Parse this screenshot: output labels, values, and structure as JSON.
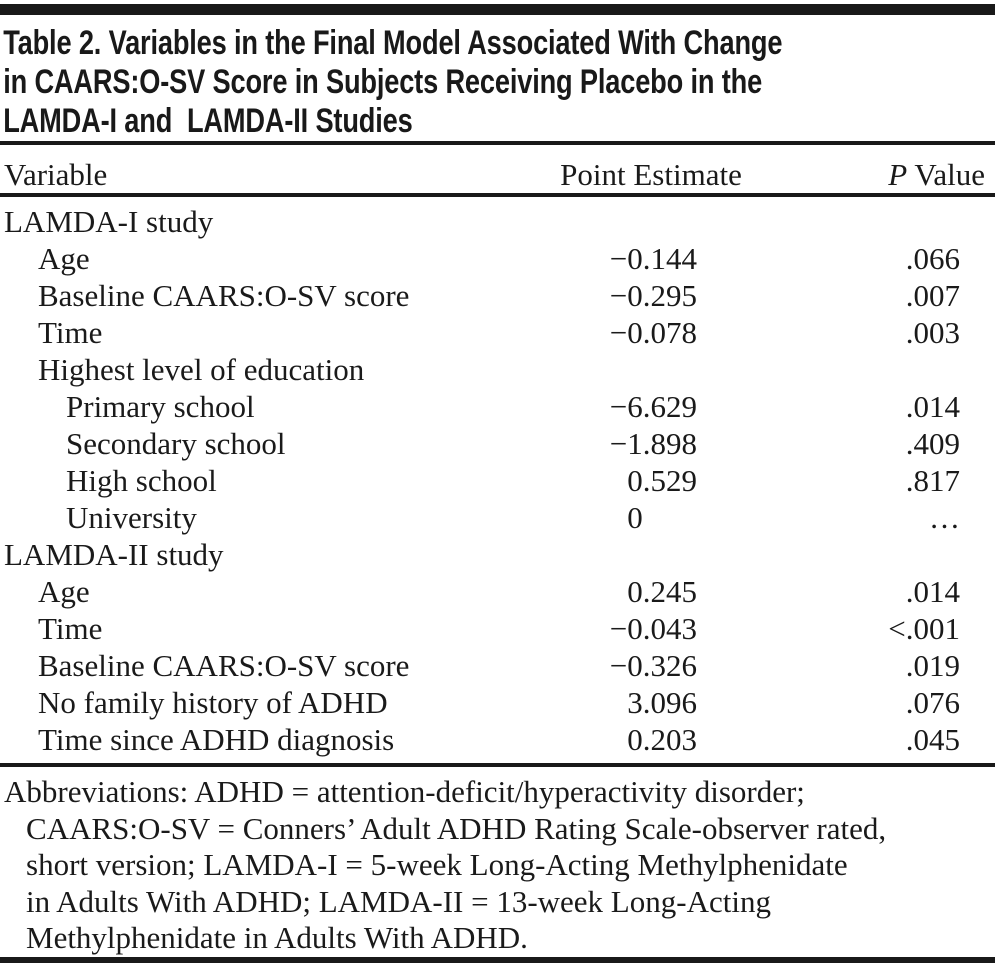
{
  "title": {
    "lines": [
      "Table 2. Variables in the Final Model Associated With Change",
      "in CAARS:O-SV Score in Subjects Receiving Placebo in the",
      "LAMDA-I and  LAMDA-II Studies"
    ]
  },
  "table": {
    "columns": {
      "variable": "Variable",
      "point_estimate": "Point Estimate",
      "p_italic": "P",
      "p_rest": " Value"
    },
    "rows": [
      {
        "label": "LAMDA-I study",
        "indent": 0,
        "point_estimate": "",
        "p_value": ""
      },
      {
        "label": "Age",
        "indent": 1,
        "point_estimate": "−0.144",
        "p_value": ".066"
      },
      {
        "label": "Baseline CAARS:O-SV score",
        "indent": 1,
        "point_estimate": "−0.295",
        "p_value": ".007"
      },
      {
        "label": "Time",
        "indent": 1,
        "point_estimate": "−0.078",
        "p_value": ".003"
      },
      {
        "label": "Highest level of education",
        "indent": 1,
        "point_estimate": "",
        "p_value": ""
      },
      {
        "label": "Primary school",
        "indent": 2,
        "point_estimate": "−6.629",
        "p_value": ".014"
      },
      {
        "label": "Secondary school",
        "indent": 2,
        "point_estimate": "−1.898",
        "p_value": ".409"
      },
      {
        "label": "High school",
        "indent": 2,
        "point_estimate": "0.529",
        "p_value": ".817"
      },
      {
        "label": "University",
        "indent": 2,
        "point_estimate": "0",
        "p_value": "…"
      },
      {
        "label": "LAMDA-II study",
        "indent": 0,
        "point_estimate": "",
        "p_value": ""
      },
      {
        "label": "Age",
        "indent": 1,
        "point_estimate": "0.245",
        "p_value": ".014"
      },
      {
        "label": "Time",
        "indent": 1,
        "point_estimate": "−0.043",
        "p_value": "<.001"
      },
      {
        "label": "Baseline CAARS:O-SV score",
        "indent": 1,
        "point_estimate": "−0.326",
        "p_value": ".019"
      },
      {
        "label": "No family history of ADHD",
        "indent": 1,
        "point_estimate": "3.096",
        "p_value": ".076"
      },
      {
        "label": "Time since ADHD diagnosis",
        "indent": 1,
        "point_estimate": "0.203",
        "p_value": ".045"
      }
    ]
  },
  "footnote": {
    "lines": [
      "Abbreviations: ADHD = attention-deficit/hyperactivity disorder;",
      "CAARS:O-SV = Conners’ Adult ADHD Rating Scale-observer rated,",
      "short version; LAMDA-I = 5-week Long-Acting Methylphenidate",
      "in Adults With ADHD; LAMDA-II = 13-week Long-Acting",
      "Methylphenidate in Adults With ADHD."
    ]
  },
  "colors": {
    "text": "#1a1a1a",
    "rule": "#191919",
    "background": "#ffffff"
  }
}
